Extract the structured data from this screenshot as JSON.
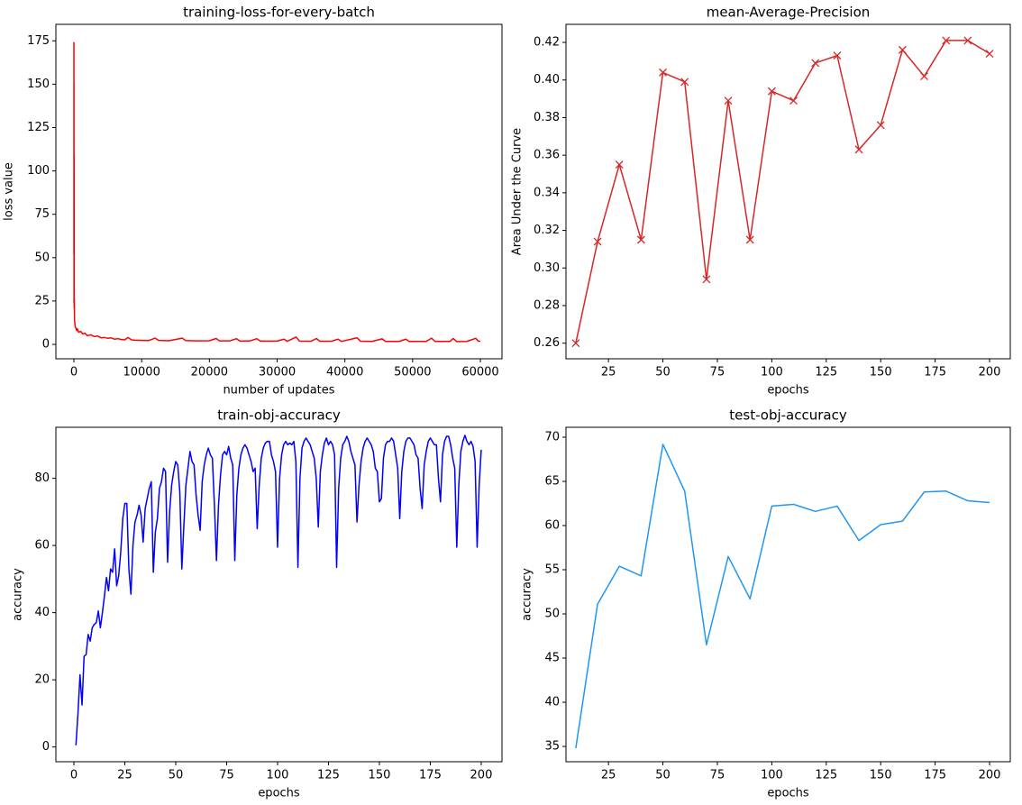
{
  "chart_data": [
    {
      "type": "line",
      "title": "training-loss-for-every-batch",
      "xlabel": "number of updates",
      "ylabel": "loss value",
      "x": [
        0,
        5,
        10,
        15,
        20,
        30,
        40,
        60,
        80,
        100,
        150,
        200,
        300,
        400,
        500,
        700,
        1000,
        1300,
        1600,
        2000,
        2500,
        3000,
        3500,
        4000,
        4500,
        5000,
        5500,
        6000,
        6500,
        7000,
        7500,
        8000,
        8500,
        9000,
        10000,
        11000,
        12000,
        12500,
        14000,
        16000,
        16500,
        18000,
        20000,
        21000,
        21500,
        23000,
        24000,
        24500,
        26000,
        27000,
        27500,
        30000,
        31000,
        31500,
        32800,
        33300,
        35000,
        35800,
        36300,
        38000,
        39000,
        39500,
        41800,
        42300,
        44000,
        45500,
        46000,
        48000,
        49000,
        49500,
        52000,
        52800,
        53300,
        55500,
        56000,
        56500,
        58000,
        59300,
        59700,
        60000
      ],
      "series": [
        {
          "color": "#ff0000",
          "values": [
            52,
            174,
            60,
            150,
            24,
            110,
            21,
            26,
            18,
            14,
            12,
            10,
            9.5,
            8,
            9,
            7,
            7.5,
            6,
            6.5,
            5,
            5.5,
            4.5,
            4.8,
            3.8,
            4,
            3.5,
            3.8,
            3,
            3.3,
            2.8,
            2.6,
            4,
            2.6,
            2.4,
            2.3,
            2.2,
            3.6,
            2.3,
            2.1,
            3.6,
            2.2,
            2,
            2.1,
            3.4,
            2,
            2,
            3.3,
            1.9,
            2,
            3.3,
            1.9,
            1.9,
            3,
            1.8,
            4.2,
            1.9,
            1.8,
            3.4,
            1.8,
            1.8,
            3,
            1.7,
            3.8,
            1.8,
            1.7,
            3.2,
            1.7,
            1.7,
            3,
            1.7,
            1.7,
            3.6,
            1.7,
            1.7,
            3.4,
            1.6,
            1.7,
            3.5,
            1.8,
            1.9
          ]
        }
      ],
      "xlim": [
        -2660,
        63190
      ],
      "xticks": [
        0,
        10000,
        20000,
        30000,
        40000,
        50000,
        60000
      ],
      "ylim": [
        -8.3,
        184.5
      ],
      "yticks": [
        0,
        25,
        50,
        75,
        100,
        125,
        150,
        175
      ],
      "grid": false
    },
    {
      "type": "line",
      "title": "mean-Average-Precision",
      "xlabel": "epochs",
      "ylabel": "Area Under the Curve",
      "x": [
        10,
        20,
        30,
        40,
        50,
        60,
        70,
        80,
        90,
        100,
        110,
        120,
        130,
        140,
        150,
        160,
        170,
        180,
        190,
        200
      ],
      "series": [
        {
          "color": "#d62728",
          "marker": "x",
          "values": [
            0.26,
            0.314,
            0.355,
            0.315,
            0.404,
            0.399,
            0.294,
            0.389,
            0.315,
            0.394,
            0.389,
            0.409,
            0.413,
            0.363,
            0.376,
            0.416,
            0.402,
            0.421,
            0.421,
            0.414
          ]
        }
      ],
      "xlim": [
        5.5,
        209.5
      ],
      "xticks": [
        25,
        50,
        75,
        100,
        125,
        150,
        175,
        200
      ],
      "ylim": [
        0.2517,
        0.4296
      ],
      "yticks": [
        0.26,
        0.28,
        {
          "value": 0.3,
          "label": "0.30"
        },
        0.32,
        0.34,
        0.36,
        0.38,
        {
          "value": 0.4,
          "label": "0.40"
        },
        0.42
      ],
      "grid": false
    },
    {
      "type": "line",
      "title": "train-obj-accuracy",
      "xlabel": "epochs",
      "ylabel": "accuracy",
      "x": [
        1,
        2,
        3,
        4,
        5,
        6,
        7,
        8,
        9,
        10,
        11,
        12,
        13,
        14,
        15,
        16,
        17,
        18,
        19,
        20,
        21,
        22,
        23,
        24,
        25,
        26,
        27,
        28,
        29,
        30,
        31,
        32,
        33,
        34,
        35,
        36,
        37,
        38,
        39,
        40,
        41,
        42,
        43,
        44,
        45,
        46,
        47,
        48,
        49,
        50,
        51,
        52,
        53,
        54,
        55,
        56,
        57,
        58,
        59,
        60,
        61,
        62,
        63,
        64,
        65,
        66,
        67,
        68,
        69,
        70,
        71,
        72,
        73,
        74,
        75,
        76,
        77,
        78,
        79,
        80,
        81,
        82,
        83,
        84,
        85,
        86,
        87,
        88,
        89,
        90,
        91,
        92,
        93,
        94,
        95,
        96,
        97,
        98,
        99,
        100,
        101,
        102,
        103,
        104,
        105,
        106,
        107,
        108,
        109,
        110,
        111,
        112,
        113,
        114,
        115,
        116,
        117,
        118,
        119,
        120,
        121,
        122,
        123,
        124,
        125,
        126,
        127,
        128,
        129,
        130,
        131,
        132,
        133,
        134,
        135,
        136,
        137,
        138,
        139,
        140,
        141,
        142,
        143,
        144,
        145,
        146,
        147,
        148,
        149,
        150,
        151,
        152,
        153,
        154,
        155,
        156,
        157,
        158,
        159,
        160,
        161,
        162,
        163,
        164,
        165,
        166,
        167,
        168,
        169,
        170,
        171,
        172,
        173,
        174,
        175,
        176,
        177,
        178,
        179,
        180,
        181,
        182,
        183,
        184,
        185,
        186,
        187,
        188,
        189,
        190,
        191,
        192,
        193,
        194,
        195,
        196,
        197,
        198,
        199,
        200
      ],
      "series": [
        {
          "color": "#0000ff",
          "values": [
            0.5,
            10,
            21.5,
            12.5,
            27,
            27.5,
            33.5,
            31.5,
            35.5,
            36.5,
            37,
            40.5,
            35.5,
            40,
            45,
            50.5,
            46.5,
            53,
            52,
            59,
            48,
            51,
            58,
            68,
            72.5,
            72.5,
            53,
            45.5,
            60,
            67,
            69,
            72,
            69,
            61,
            71,
            74,
            77,
            79,
            52,
            64,
            68,
            77,
            79,
            83,
            82,
            55,
            70,
            78,
            82,
            85,
            84,
            76,
            53,
            66,
            78,
            83,
            88,
            85,
            84,
            75,
            69,
            64.5,
            79,
            84,
            87,
            89,
            87,
            86,
            72,
            55.5,
            72,
            81,
            87,
            88,
            87,
            89.5,
            86,
            84,
            55.5,
            75,
            83,
            87,
            89,
            90,
            89,
            87,
            85,
            82,
            83,
            65,
            78,
            86,
            89,
            90.5,
            91,
            91,
            87,
            85,
            82,
            59.5,
            80,
            87,
            90,
            91,
            90,
            90.5,
            90,
            91,
            85,
            53.5,
            80,
            89,
            91,
            92,
            91,
            90,
            88,
            86,
            80,
            65.5,
            82,
            87,
            90.5,
            92,
            90,
            91,
            90,
            87,
            53.5,
            77,
            86,
            90,
            91,
            92.5,
            91,
            88,
            86,
            84,
            67,
            78,
            85,
            89,
            91,
            92,
            91,
            90,
            88,
            83,
            82,
            73,
            74,
            86,
            90,
            91,
            91,
            92,
            91,
            87,
            83,
            68,
            82,
            88,
            91,
            92,
            92,
            91,
            90,
            87,
            86,
            77,
            71,
            84,
            88,
            91,
            92,
            91,
            90,
            90,
            80,
            73,
            87,
            91,
            92.5,
            92.5,
            90,
            86,
            83,
            59.5,
            78,
            88,
            91,
            92.8,
            91,
            90,
            91,
            89.5,
            85,
            59.5,
            78,
            88.5
          ]
        }
      ],
      "xlim": [
        -8.85,
        210.2
      ],
      "xticks": [
        0,
        25,
        50,
        75,
        100,
        125,
        150,
        175,
        200
      ],
      "ylim": [
        -4.4,
        95.2
      ],
      "yticks": [
        0,
        20,
        40,
        60,
        80
      ],
      "grid": false
    },
    {
      "type": "line",
      "title": "test-obj-accuracy",
      "xlabel": "epochs",
      "ylabel": "accuracy",
      "x": [
        10,
        20,
        30,
        40,
        50,
        60,
        70,
        80,
        90,
        100,
        110,
        120,
        130,
        140,
        150,
        160,
        170,
        180,
        190,
        200
      ],
      "series": [
        {
          "color": "#2196f3",
          "values": [
            34.8,
            51.1,
            55.4,
            54.3,
            69.2,
            63.9,
            46.5,
            56.5,
            51.7,
            62.2,
            62.4,
            61.6,
            62.2,
            58.3,
            60.1,
            60.5,
            63.8,
            63.9,
            62.8,
            62.6
          ]
        }
      ],
      "xlim": [
        5.5,
        209.5
      ],
      "xticks": [
        25,
        50,
        75,
        100,
        125,
        150,
        175,
        200
      ],
      "ylim": [
        33.27,
        71.12
      ],
      "yticks": [
        35,
        40,
        45,
        50,
        55,
        60,
        65,
        70
      ],
      "grid": false
    }
  ]
}
